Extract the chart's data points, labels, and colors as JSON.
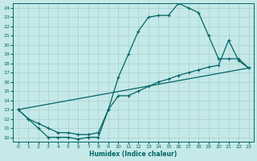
{
  "xlabel": "Humidex (Indice chaleur)",
  "bg_color": "#c5e8e8",
  "grid_color": "#a8d0d0",
  "line_color": "#006666",
  "xlim": [
    -0.5,
    23.5
  ],
  "ylim": [
    9.5,
    24.5
  ],
  "xticks": [
    0,
    1,
    2,
    3,
    4,
    5,
    6,
    7,
    8,
    9,
    10,
    11,
    12,
    13,
    14,
    15,
    16,
    17,
    18,
    19,
    20,
    21,
    22,
    23
  ],
  "yticks": [
    10,
    11,
    12,
    13,
    14,
    15,
    16,
    17,
    18,
    19,
    20,
    21,
    22,
    23,
    24
  ],
  "curve1_x": [
    0,
    1,
    2,
    3,
    4,
    5,
    6,
    7,
    8,
    9,
    10,
    11,
    12,
    13,
    14,
    15,
    16,
    17,
    18,
    19,
    20,
    21,
    22,
    23
  ],
  "curve1_y": [
    13,
    12,
    11,
    10,
    10,
    10,
    9.8,
    10,
    10,
    13,
    16.5,
    19.0,
    21.5,
    23.0,
    23.2,
    23.2,
    24.5,
    24.0,
    23.5,
    21.0,
    18.5,
    18.5,
    18.5,
    17.5
  ],
  "curve2_x": [
    0,
    23
  ],
  "curve2_y": [
    13,
    17.5
  ],
  "curve3_x": [
    0,
    1,
    2,
    3,
    4,
    5,
    6,
    7,
    8,
    9,
    10,
    11,
    12,
    13,
    14,
    15,
    16,
    17,
    18,
    19,
    20,
    21,
    22,
    23
  ],
  "curve3_y": [
    13,
    12,
    11.5,
    11.0,
    10.5,
    10.5,
    10.3,
    10.3,
    10.5,
    13.0,
    14.5,
    14.5,
    15.0,
    15.5,
    16.0,
    16.3,
    16.7,
    17.0,
    17.3,
    17.6,
    17.8,
    20.5,
    18.3,
    17.5
  ],
  "figsize": [
    3.2,
    2.0
  ],
  "dpi": 100
}
